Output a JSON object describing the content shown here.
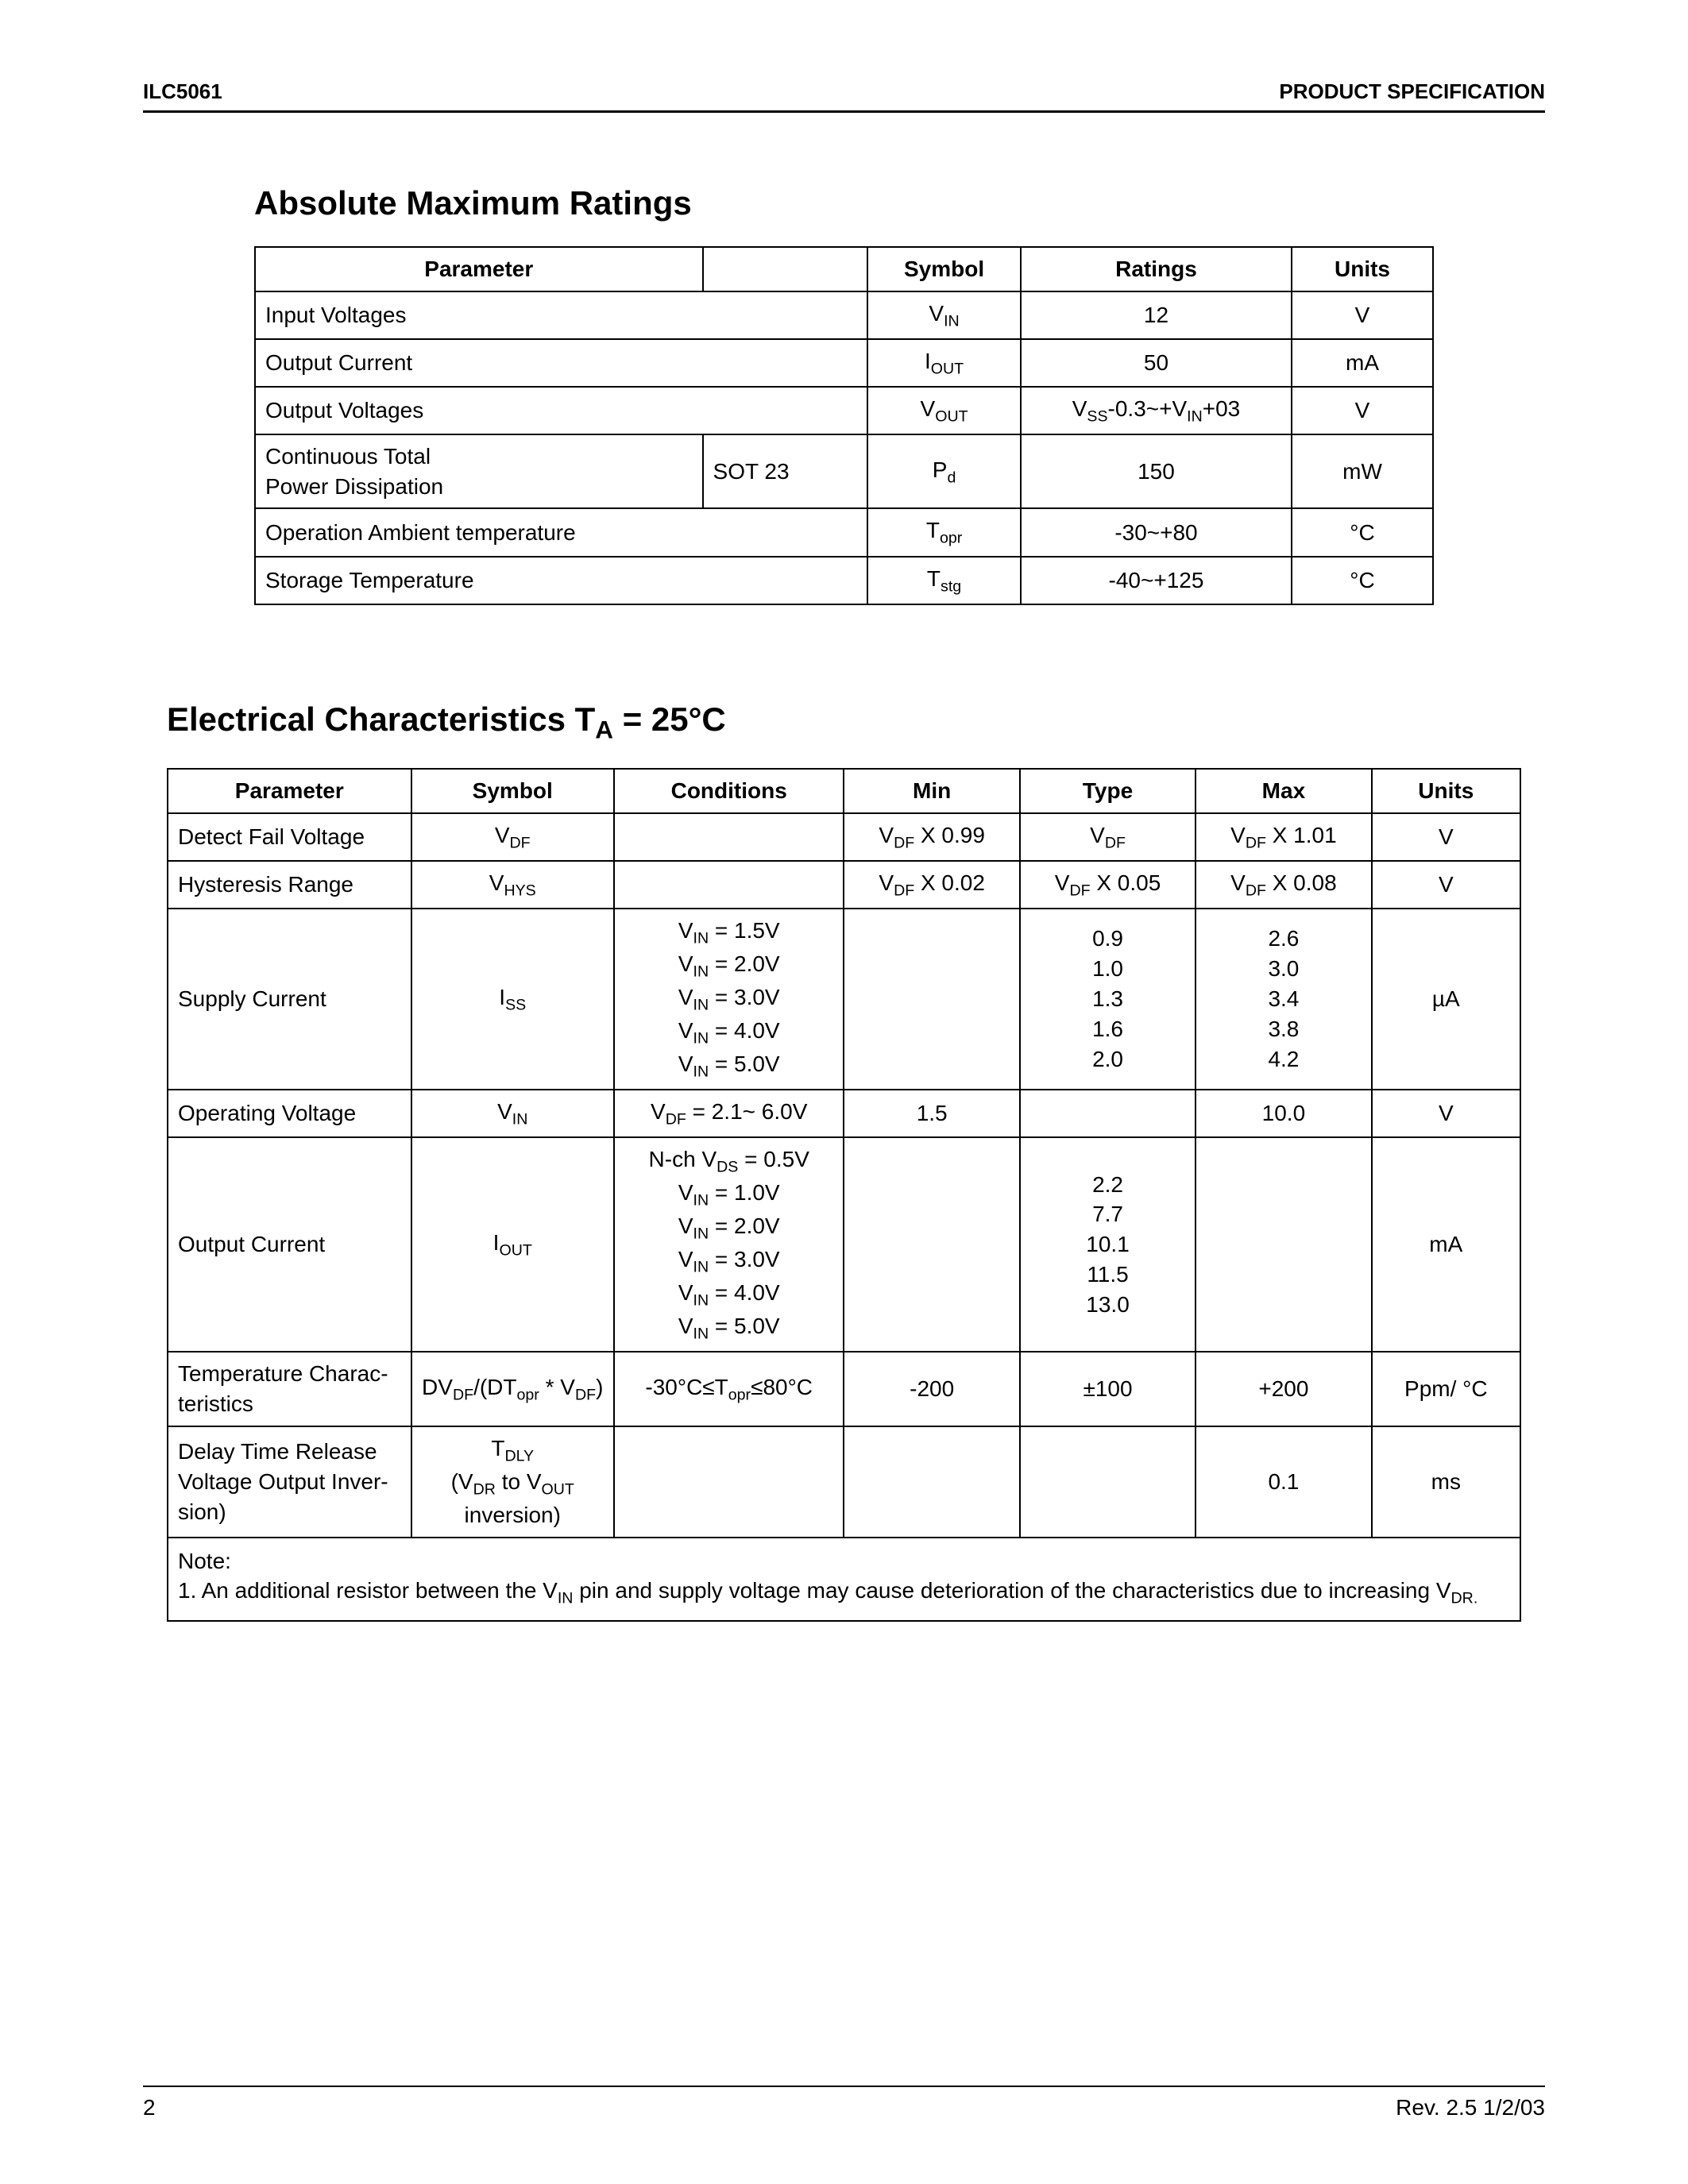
{
  "header": {
    "left": "ILC5061",
    "right": "PRODUCT SPECIFICATION"
  },
  "section1": {
    "title": "Absolute Maximum Ratings",
    "columns": [
      "Parameter",
      "",
      "Symbol",
      "Ratings",
      "Units"
    ],
    "rows": [
      {
        "param": "Input Voltages",
        "pkg": "",
        "sym_main": "V",
        "sym_sub": "IN",
        "rating": "12",
        "units": "V",
        "span_pkg": true
      },
      {
        "param": "Output Current",
        "pkg": "",
        "sym_main": "I",
        "sym_sub": "OUT",
        "rating": "50",
        "units": "mA",
        "span_pkg": true
      },
      {
        "param": "Output Voltages",
        "pkg": "",
        "sym_main": "V",
        "sym_sub": "OUT",
        "rating_html": "V<sub>SS</sub>-0.3~+V<sub>IN</sub>+03",
        "units": "V",
        "span_pkg": true
      },
      {
        "param": "Continuous Total\nPower Dissipation",
        "pkg": "SOT 23",
        "sym_main": "P",
        "sym_sub": "d",
        "rating": "150",
        "units": "mW",
        "span_pkg": false
      },
      {
        "param": "Operation Ambient temperature",
        "pkg": "",
        "sym_main": "T",
        "sym_sub": "opr",
        "rating": "-30~+80",
        "units_html": "°C",
        "span_pkg": true
      },
      {
        "param": "Storage Temperature",
        "pkg": "",
        "sym_main": "T",
        "sym_sub": "stg",
        "rating": "-40~+125",
        "units_html": "°C",
        "span_pkg": true
      }
    ]
  },
  "section2": {
    "title_prefix": "Electrical Characteristics ",
    "title_ta": "T",
    "title_ta_sub": "A",
    "title_suffix": " = 25°C",
    "columns": [
      "Parameter",
      "Symbol",
      "Conditions",
      "Min",
      "Type",
      "Max",
      "Units"
    ],
    "rows": [
      {
        "param": "Detect Fail Voltage",
        "sym_html": "V<sub>DF</sub>",
        "cond": "",
        "min_html": "V<sub>DF</sub> X 0.99",
        "typ_html": "V<sub>DF</sub>",
        "max_html": "V<sub>DF</sub> X 1.01",
        "units": "V"
      },
      {
        "param": "Hysteresis Range",
        "sym_html": "V<sub>HYS</sub>",
        "cond": "",
        "min_html": "V<sub>DF</sub> X 0.02",
        "typ_html": "V<sub>DF</sub> X 0.05",
        "max_html": "V<sub>DF</sub> X 0.08",
        "units": "V"
      },
      {
        "param": "Supply Current",
        "sym_html": "I<sub>SS</sub>",
        "cond_html": "V<sub>IN</sub> = 1.5V\nV<sub>IN</sub> = 2.0V\nV<sub>IN</sub> = 3.0V\nV<sub>IN</sub> = 4.0V\nV<sub>IN</sub> = 5.0V",
        "min": "",
        "typ": "0.9\n1.0\n1.3\n1.6\n2.0",
        "max": "2.6\n3.0\n3.4\n3.8\n4.2",
        "units": "µA"
      },
      {
        "param": "Operating Voltage",
        "sym_html": "V<sub>IN</sub>",
        "cond_html": "V<sub>DF</sub> = 2.1~ 6.0V",
        "min": "1.5",
        "typ": "",
        "max": "10.0",
        "units": "V"
      },
      {
        "param": "Output Current",
        "sym_html": "I<sub>OUT</sub>",
        "cond_html": "N-ch V<sub>DS</sub> = 0.5V\nV<sub>IN</sub> = 1.0V\nV<sub>IN</sub> = 2.0V\nV<sub>IN</sub> = 3.0V\nV<sub>IN</sub> = 4.0V\nV<sub>IN</sub> = 5.0V",
        "min": "",
        "typ": "2.2\n7.7\n10.1\n11.5\n13.0",
        "max": "",
        "units": "mA"
      },
      {
        "param": "Temperature Charac-\nteristics",
        "sym_html": "DV<sub>DF</sub>/(DT<sub>opr</sub> * V<sub>DF</sub>)",
        "cond_html": "-30°C≤T<sub>opr</sub>≤80°C",
        "min": "-200",
        "typ": "±100",
        "max": "+200",
        "units_html": "Ppm/ °C"
      },
      {
        "param": "Delay Time Release\nVoltage  Output Inver-\nsion)",
        "sym_html": "T<sub>DLY</sub>\n(V<sub>DR</sub> to V<sub>OUT</sub>\ninversion)",
        "cond": "",
        "min": "",
        "typ": "",
        "max": "0.1",
        "units": "ms"
      }
    ],
    "note_label": "Note:",
    "note_html": "1. An additional resistor between the V<sub>IN</sub> pin and supply voltage may cause deterioration of the characteristics due to increasing V<sub>DR.</sub>"
  },
  "footer": {
    "page": "2",
    "rev": "Rev. 2.5 1/2/03"
  },
  "colors": {
    "text": "#000000",
    "bg": "#ffffff",
    "border": "#000000"
  }
}
